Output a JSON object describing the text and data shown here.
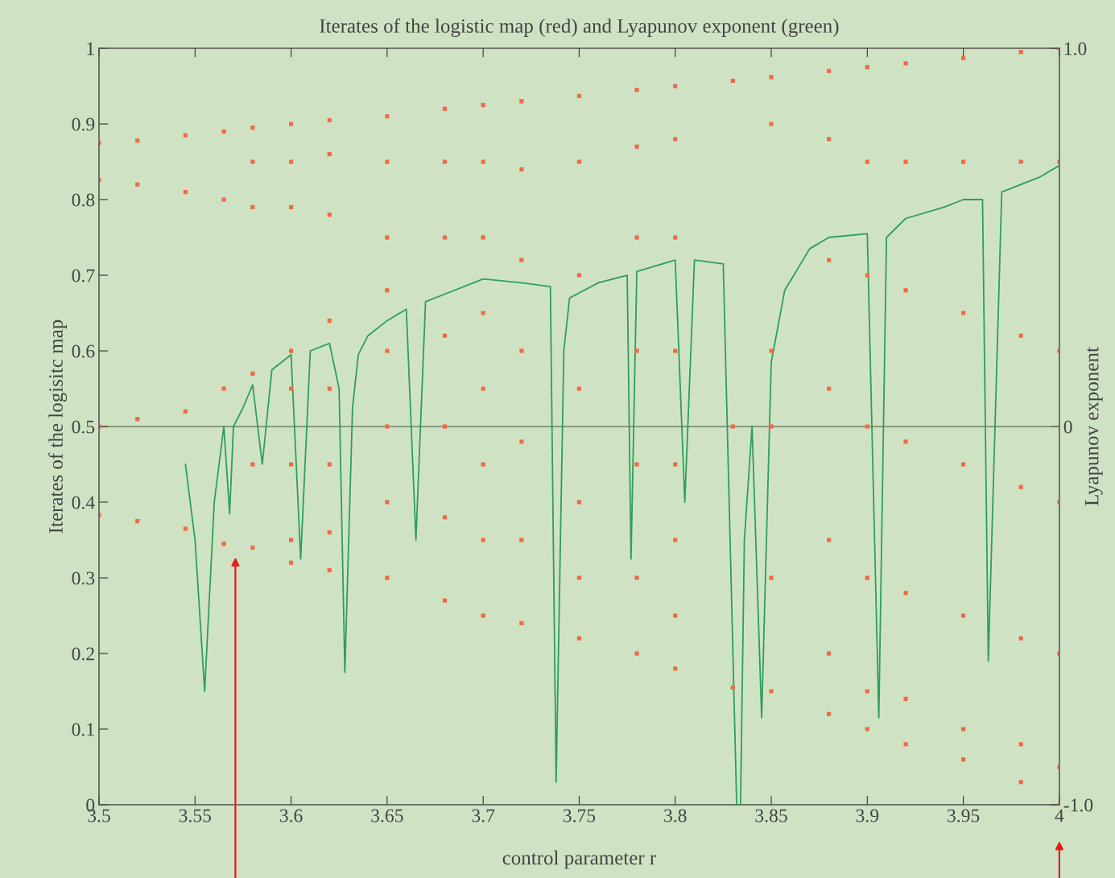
{
  "chart_data": {
    "type": "scatter",
    "title": "Iterates of the logistic map (red) and Lyapunov exponent (green)",
    "xlabel": "control parameter r",
    "ylabel": "Iterates of the logisitc map",
    "y2label": "Lyapunov exponent",
    "xlim": [
      3.5,
      4
    ],
    "xticks": [
      3.5,
      3.55,
      3.6,
      3.65,
      3.7,
      3.75,
      3.8,
      3.85,
      3.9,
      3.95,
      4
    ],
    "ylim": [
      0,
      1
    ],
    "yticks": [
      0,
      0.1,
      0.2,
      0.3,
      0.4,
      0.5,
      0.6,
      0.7,
      0.8,
      0.9,
      1
    ],
    "y2lim": [
      -1,
      1
    ],
    "y2ticks": [
      {
        "value": -1,
        "label": "-1.0"
      },
      0,
      {
        "value": 1,
        "label": "1.0"
      }
    ],
    "grid": false,
    "legend": false,
    "ref_lines": [
      {
        "axis": "y2",
        "value": 0,
        "color": "#6b7f6b"
      }
    ],
    "series": [
      {
        "color": "#ee6a48",
        "marker": "square",
        "x": [
          3.5,
          3.5,
          3.5,
          3.5,
          3.52,
          3.52,
          3.52,
          3.52,
          3.545,
          3.545,
          3.545,
          3.545,
          3.565,
          3.565,
          3.565,
          3.565,
          3.58,
          3.58,
          3.58,
          3.58,
          3.58,
          3.58,
          3.6,
          3.6,
          3.6,
          3.6,
          3.6,
          3.6,
          3.6,
          3.6,
          3.62,
          3.62,
          3.62,
          3.62,
          3.62,
          3.62,
          3.62,
          3.62,
          3.65,
          3.65,
          3.65,
          3.65,
          3.65,
          3.65,
          3.65,
          3.65,
          3.68,
          3.68,
          3.68,
          3.68,
          3.68,
          3.68,
          3.68,
          3.7,
          3.7,
          3.7,
          3.7,
          3.7,
          3.7,
          3.7,
          3.7,
          3.72,
          3.72,
          3.72,
          3.72,
          3.72,
          3.72,
          3.72,
          3.75,
          3.75,
          3.75,
          3.75,
          3.75,
          3.75,
          3.75,
          3.78,
          3.78,
          3.78,
          3.78,
          3.78,
          3.78,
          3.78,
          3.8,
          3.8,
          3.8,
          3.8,
          3.8,
          3.8,
          3.8,
          3.8,
          3.83,
          3.83,
          3.83,
          3.85,
          3.85,
          3.85,
          3.85,
          3.85,
          3.85,
          3.88,
          3.88,
          3.88,
          3.88,
          3.88,
          3.88,
          3.88,
          3.9,
          3.9,
          3.9,
          3.9,
          3.9,
          3.9,
          3.9,
          3.92,
          3.92,
          3.92,
          3.92,
          3.92,
          3.92,
          3.92,
          3.95,
          3.95,
          3.95,
          3.95,
          3.95,
          3.95,
          3.95,
          3.98,
          3.98,
          3.98,
          3.98,
          3.98,
          3.98,
          3.98,
          4,
          4,
          4,
          4,
          4,
          4,
          4
        ],
        "values": [
          0.875,
          0.826,
          0.5,
          0.383,
          0.878,
          0.82,
          0.51,
          0.375,
          0.885,
          0.81,
          0.52,
          0.365,
          0.89,
          0.8,
          0.55,
          0.345,
          0.895,
          0.85,
          0.79,
          0.57,
          0.45,
          0.34,
          0.9,
          0.85,
          0.79,
          0.6,
          0.55,
          0.45,
          0.35,
          0.32,
          0.905,
          0.86,
          0.78,
          0.64,
          0.55,
          0.45,
          0.36,
          0.31,
          0.91,
          0.85,
          0.75,
          0.68,
          0.6,
          0.5,
          0.4,
          0.3,
          0.92,
          0.85,
          0.75,
          0.62,
          0.5,
          0.38,
          0.27,
          0.925,
          0.85,
          0.75,
          0.65,
          0.55,
          0.45,
          0.35,
          0.25,
          0.93,
          0.84,
          0.72,
          0.6,
          0.48,
          0.35,
          0.24,
          0.937,
          0.85,
          0.7,
          0.55,
          0.4,
          0.3,
          0.22,
          0.945,
          0.87,
          0.75,
          0.6,
          0.45,
          0.3,
          0.2,
          0.95,
          0.88,
          0.75,
          0.6,
          0.45,
          0.35,
          0.25,
          0.18,
          0.957,
          0.5,
          0.155,
          0.962,
          0.9,
          0.6,
          0.5,
          0.3,
          0.15,
          0.97,
          0.88,
          0.72,
          0.55,
          0.35,
          0.2,
          0.12,
          0.975,
          0.85,
          0.7,
          0.5,
          0.3,
          0.15,
          0.1,
          0.98,
          0.85,
          0.68,
          0.48,
          0.28,
          0.14,
          0.08,
          0.987,
          0.85,
          0.65,
          0.45,
          0.25,
          0.1,
          0.06,
          0.995,
          0.85,
          0.62,
          0.42,
          0.22,
          0.08,
          0.03,
          1,
          0.85,
          0.6,
          0.4,
          0.2,
          0.05,
          0
        ]
      },
      {
        "type": "line",
        "axis": "y2",
        "color": "#2e9e5b",
        "x": [
          3.545,
          3.55,
          3.555,
          3.56,
          3.565,
          3.568,
          3.57,
          3.575,
          3.58,
          3.585,
          3.59,
          3.6,
          3.605,
          3.61,
          3.62,
          3.625,
          3.628,
          3.632,
          3.635,
          3.64,
          3.65,
          3.66,
          3.665,
          3.67,
          3.68,
          3.7,
          3.72,
          3.735,
          3.738,
          3.742,
          3.745,
          3.76,
          3.775,
          3.777,
          3.78,
          3.8,
          3.805,
          3.81,
          3.825,
          3.832,
          3.834,
          3.836,
          3.84,
          3.845,
          3.85,
          3.857,
          3.87,
          3.88,
          3.9,
          3.906,
          3.91,
          3.92,
          3.94,
          3.95,
          3.96,
          3.963,
          3.97,
          3.99,
          4
        ],
        "values": [
          -0.1,
          -0.3,
          -0.7,
          -0.2,
          0,
          -0.23,
          0,
          0.05,
          0.11,
          -0.1,
          0.15,
          0.19,
          -0.35,
          0.2,
          0.22,
          0.1,
          -0.65,
          0.05,
          0.19,
          0.24,
          0.28,
          0.31,
          -0.3,
          0.33,
          0.35,
          0.39,
          0.38,
          0.37,
          -0.94,
          0.2,
          0.34,
          0.38,
          0.4,
          -0.35,
          0.41,
          0.44,
          -0.2,
          0.44,
          0.43,
          -1,
          -1,
          -0.3,
          0,
          -0.77,
          0.17,
          0.36,
          0.47,
          0.5,
          0.51,
          -0.77,
          0.5,
          0.55,
          0.58,
          0.6,
          0.6,
          -0.62,
          0.62,
          0.66,
          0.69
        ]
      }
    ]
  }
}
